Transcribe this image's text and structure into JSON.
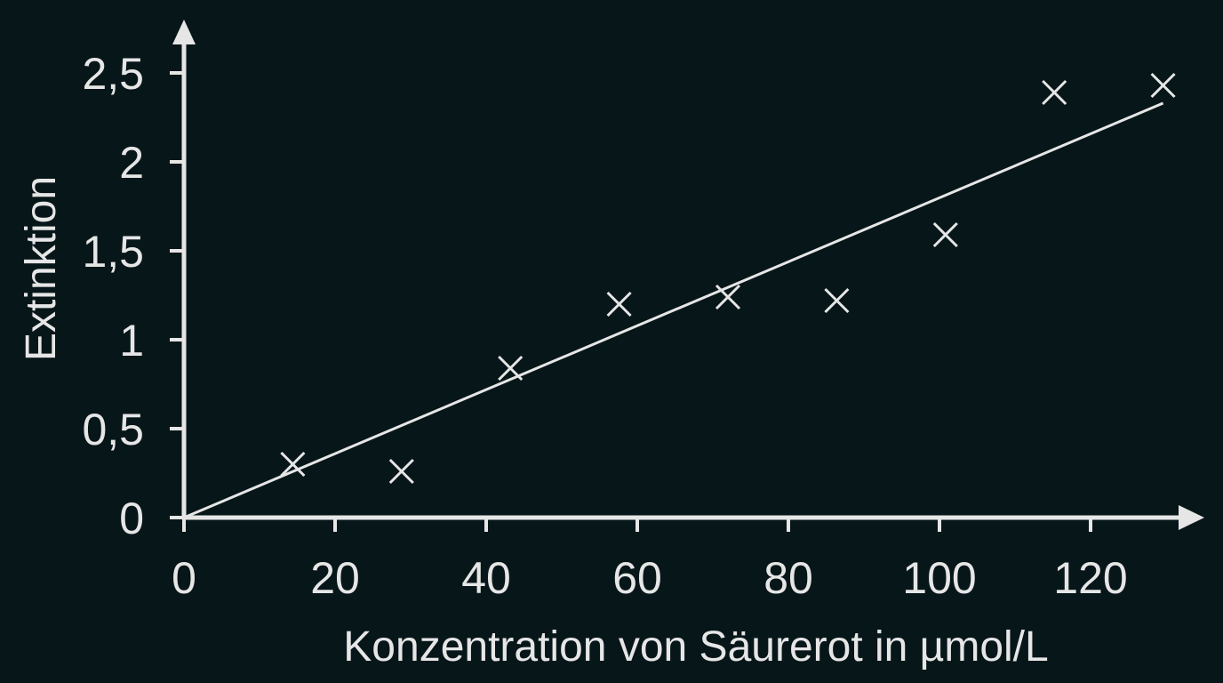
{
  "chart_data": {
    "type": "scatter",
    "xlabel": "Konzentration von Säurerot in µmol/L",
    "ylabel": "Extinktion",
    "xlim": [
      0,
      130
    ],
    "ylim": [
      0,
      2.5
    ],
    "x_ticks": [
      0,
      20,
      40,
      60,
      80,
      100,
      120
    ],
    "x_tick_labels": [
      "0",
      "20",
      "40",
      "60",
      "80",
      "100",
      "120"
    ],
    "y_ticks": [
      0,
      0.5,
      1,
      1.5,
      2,
      2.5
    ],
    "y_tick_labels": [
      "0",
      "0,5",
      "1",
      "1,5",
      "2",
      "2,5"
    ],
    "grid": false,
    "series": [
      {
        "marker": "x",
        "color": "#e6e6e6",
        "x": [
          14.4,
          28.8,
          43.2,
          57.6,
          72,
          86.4,
          100.8,
          115.2,
          129.6
        ],
        "y": [
          0.3,
          0.26,
          0.84,
          1.2,
          1.24,
          1.22,
          1.59,
          2.39,
          2.43
        ]
      }
    ],
    "trendline": {
      "type": "linear",
      "color": "#e6e6e6",
      "x": [
        0,
        129.6
      ],
      "y": [
        0,
        2.33
      ]
    },
    "colors": {
      "background": "#071619",
      "foreground": "#e6e6e6"
    }
  }
}
